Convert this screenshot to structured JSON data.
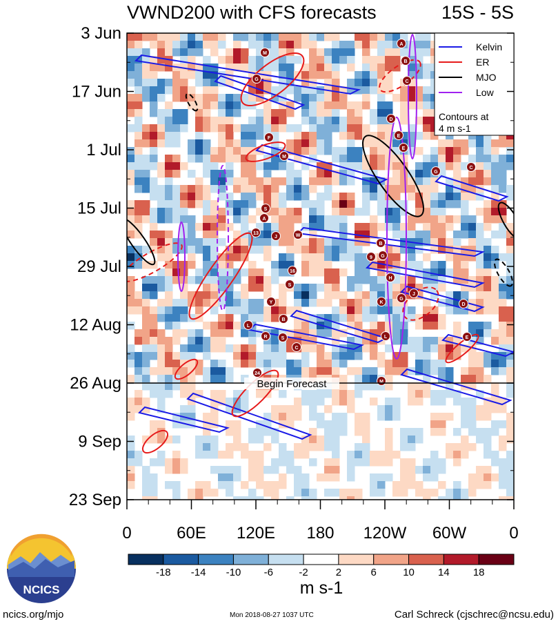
{
  "chart_data": {
    "type": "heatmap",
    "title": "VWND200 with CFS forecasts",
    "region": "15S - 5S",
    "y_ticks": [
      "3 Jun",
      "17 Jun",
      "1 Jul",
      "15 Jul",
      "29 Jul",
      "12 Aug",
      "26 Aug",
      "9 Sep",
      "23 Sep"
    ],
    "x_ticks": [
      "0",
      "60E",
      "120E",
      "180",
      "120W",
      "60W",
      "0"
    ],
    "x_range_deg": [
      0,
      360
    ],
    "forecast_label": "Begin Forecast",
    "forecast_start": "26 Aug",
    "legend": [
      {
        "name": "Kelvin",
        "color": "#1a1ae6"
      },
      {
        "name": "ER",
        "color": "#e61a1a"
      },
      {
        "name": "MJO",
        "color": "#000000"
      },
      {
        "name": "Low",
        "color": "#a020f0"
      }
    ],
    "legend_note": [
      "Contours at",
      "4 m s-1"
    ],
    "colorbar": {
      "tick_labels": [
        "-18",
        "-14",
        "-10",
        "-6",
        "-2",
        "2",
        "6",
        "10",
        "14",
        "18"
      ],
      "colors": [
        "#08305f",
        "#1b5aa0",
        "#3c82c0",
        "#7fb0d8",
        "#c6dff0",
        "#ffffff",
        "#fdd9c4",
        "#f1a488",
        "#d9614e",
        "#b21a2a",
        "#6a0015"
      ],
      "units": "m s-1"
    },
    "storm_markers": [
      "M",
      "G",
      "F",
      "M",
      "S",
      "A",
      "13",
      "J",
      "W",
      "16",
      "S",
      "Y",
      "B",
      "L",
      "R",
      "S",
      "C",
      "24",
      "A",
      "B",
      "C",
      "D",
      "E",
      "E",
      "G",
      "C",
      "B",
      "9",
      "G",
      "H",
      "K",
      "G",
      "J",
      "D",
      "L",
      "M",
      "E"
    ]
  },
  "logo": {
    "text": "NCICS"
  },
  "footer": {
    "left": "ncics.org/mjo",
    "center": "Mon 2018-08-27 1037 UTC",
    "right": "Carl Schreck (cjschrec@ncsu.edu)"
  }
}
